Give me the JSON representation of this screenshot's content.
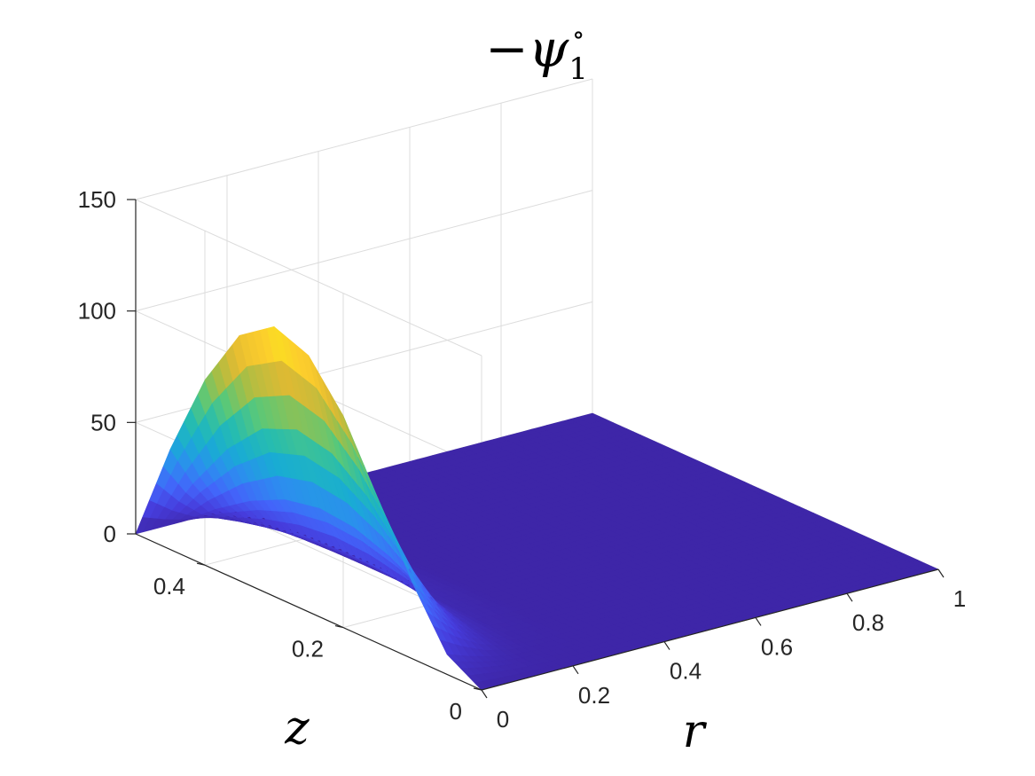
{
  "chart_data": {
    "type": "surface3d",
    "title": "−ψ₁°",
    "title_parts": {
      "minus": "−",
      "symbol": "ψ",
      "subscript": "1",
      "superscript": "∘"
    },
    "xlabel": "r",
    "ylabel": "z",
    "zlabel": "",
    "xlim": [
      0,
      1
    ],
    "ylim": [
      0,
      0.5
    ],
    "zlim": [
      0,
      150
    ],
    "x_ticks": [
      0,
      0.2,
      0.4,
      0.6,
      0.8,
      1
    ],
    "x_tick_labels": [
      "0",
      "0.2",
      "0.4",
      "0.6",
      "0.8",
      "1"
    ],
    "y_ticks": [
      0,
      0.2,
      0.4
    ],
    "y_tick_labels": [
      "0",
      "0.2",
      "0.4"
    ],
    "z_ticks": [
      0,
      50,
      100,
      150
    ],
    "z_tick_labels": [
      "0",
      "50",
      "100",
      "150"
    ],
    "grid": true,
    "colormap": "parula",
    "colors": {
      "low": "#3e26a8",
      "mid": "#26bcb0",
      "high": "#f9fb0e"
    },
    "surface_profile": {
      "description_values": "sampled values of −ψ₁° along the r=0 edge",
      "r0_edge": {
        "z": [
          0,
          0.05,
          0.1,
          0.15,
          0.2,
          0.25,
          0.3,
          0.35,
          0.4,
          0.45,
          0.5
        ],
        "value": [
          0,
          9,
          34,
          65,
          95,
          115,
          121,
          110,
          83,
          45,
          0
        ]
      },
      "peak": {
        "r": 0,
        "z": 0.3,
        "value": 121
      },
      "back_edge_r_profile": {
        "r": [
          0,
          0.05,
          0.1,
          0.15,
          0.2,
          0.3
        ],
        "value": [
          121,
          72,
          34,
          12,
          3,
          0
        ]
      }
    }
  }
}
